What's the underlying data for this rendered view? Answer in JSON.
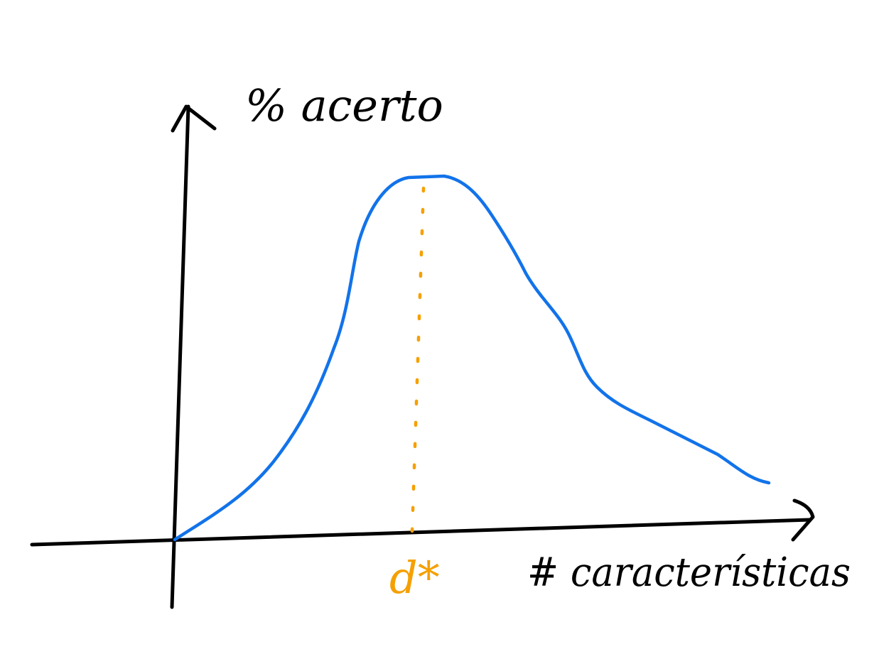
{
  "diagram": {
    "y_axis_label": "% acerto",
    "x_axis_label": "# características",
    "optimum_label": "d*",
    "curve_shape": "rises from origin to a single peak, then decays toward the right",
    "colors": {
      "axes": "#000000",
      "curve": "#1273ea",
      "optimum_marker": "#f5a000",
      "background": "#ffffff"
    }
  }
}
